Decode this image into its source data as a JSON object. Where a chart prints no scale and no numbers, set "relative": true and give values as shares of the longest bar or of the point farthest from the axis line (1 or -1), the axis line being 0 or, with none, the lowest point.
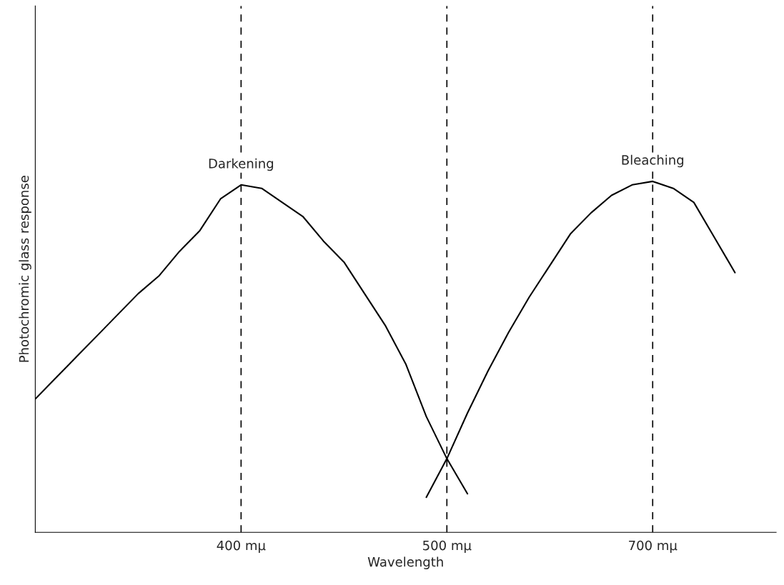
{
  "chart_data": {
    "type": "line",
    "relative": true,
    "xlabel": "Wavelength",
    "ylabel": "Photochromic glass response",
    "categories": [
      null,
      null,
      null,
      null,
      null,
      null,
      null,
      null,
      null,
      null,
      "400 mμ",
      null,
      null,
      null,
      null,
      null,
      null,
      null,
      null,
      null,
      "500 mμ",
      null,
      null,
      null,
      null,
      null,
      null,
      null,
      null,
      null,
      "700 mμ",
      null,
      null,
      null,
      null,
      null,
      null
    ],
    "series": [
      {
        "name": "Darkening",
        "color": "#000000",
        "values": [
          0.38,
          0.44,
          0.5,
          0.56,
          0.62,
          0.68,
          0.73,
          0.8,
          0.86,
          0.95,
          0.99,
          0.98,
          0.94,
          0.9,
          0.83,
          0.77,
          0.68,
          0.59,
          0.48,
          0.33,
          0.21,
          0.11,
          null,
          null,
          null,
          null,
          null,
          null,
          null,
          null,
          null,
          null,
          null,
          null,
          null,
          null,
          null
        ]
      },
      {
        "name": "Bleaching",
        "color": "#000000",
        "values": [
          null,
          null,
          null,
          null,
          null,
          null,
          null,
          null,
          null,
          null,
          null,
          null,
          null,
          null,
          null,
          null,
          null,
          null,
          null,
          0.1,
          0.21,
          0.34,
          0.46,
          0.57,
          0.67,
          0.76,
          0.85,
          0.91,
          0.96,
          0.99,
          1.0,
          0.98,
          0.94,
          0.84,
          0.74,
          null,
          null
        ]
      }
    ],
    "ref_lines": [
      {
        "axis": "x",
        "value": "400 mμ",
        "line_style": "dashed",
        "color": "#000000"
      },
      {
        "axis": "x",
        "value": "500 mμ",
        "line_style": "dashed",
        "color": "#000000"
      },
      {
        "axis": "x",
        "value": "700 mμ",
        "line_style": "dashed",
        "color": "#000000"
      }
    ],
    "grid": false,
    "legend": false
  }
}
